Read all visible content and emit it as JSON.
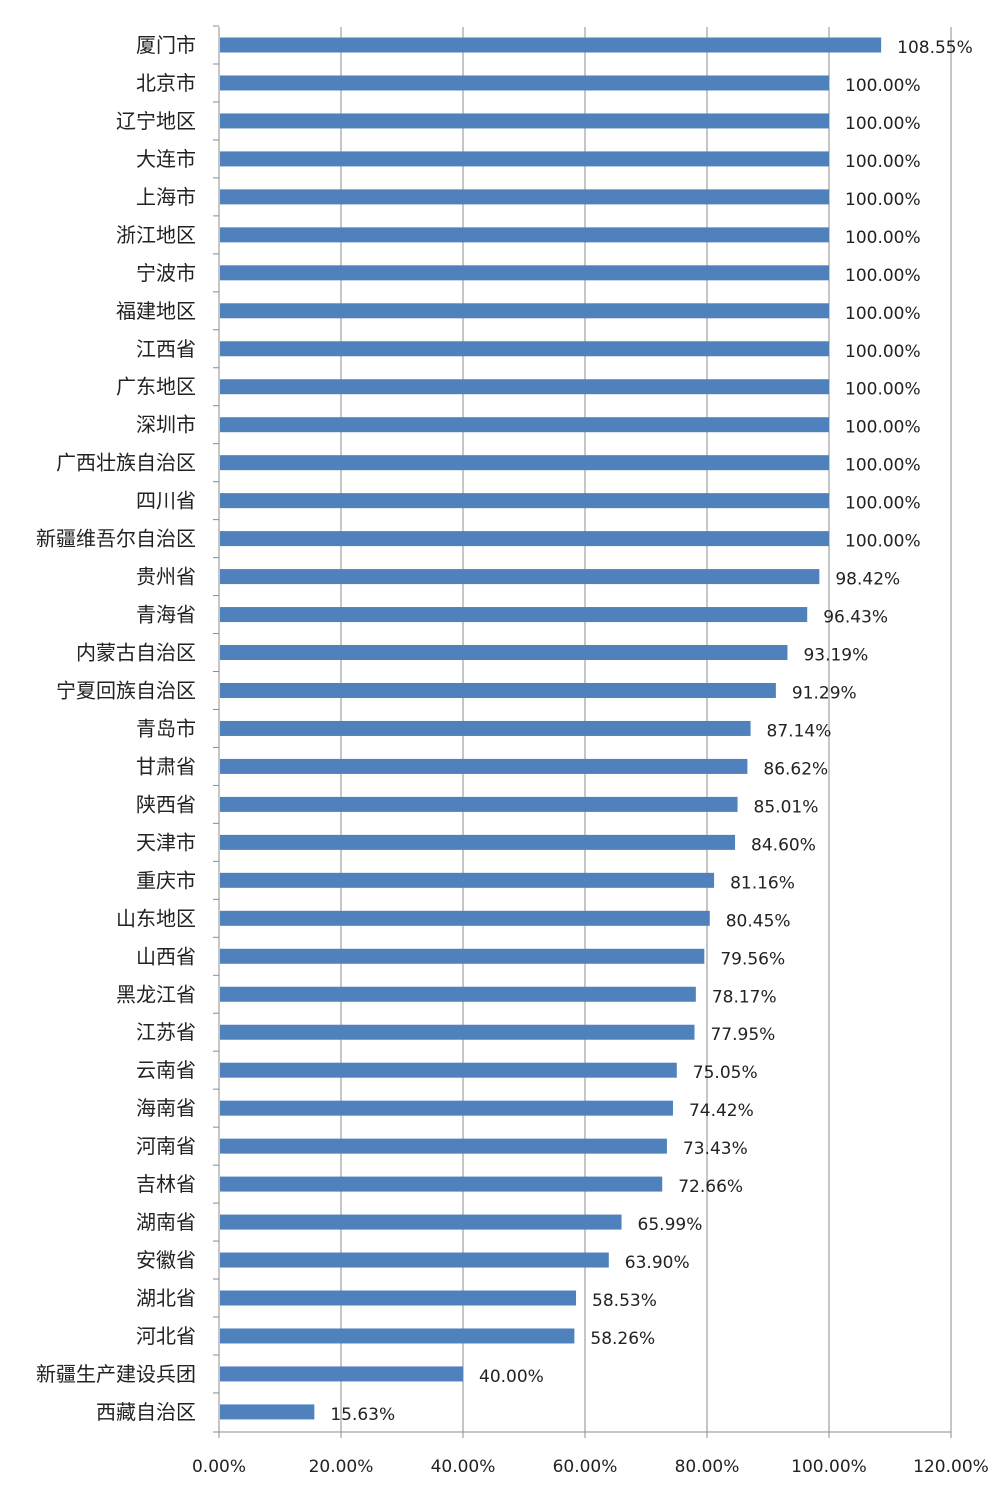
{
  "chart_data": {
    "type": "bar",
    "orientation": "horizontal",
    "title": "",
    "xlabel": "",
    "ylabel": "",
    "xlim": [
      0,
      120
    ],
    "x_ticks": [
      "0.00%",
      "20.00%",
      "40.00%",
      "60.00%",
      "80.00%",
      "100.00%",
      "120.00%"
    ],
    "grid": "vertical",
    "legend": "none",
    "bar_color": "#4F81BD",
    "categories": [
      "厦门市",
      "北京市",
      "辽宁地区",
      "大连市",
      "上海市",
      "浙江地区",
      "宁波市",
      "福建地区",
      "江西省",
      "广东地区",
      "深圳市",
      "广西壮族自治区",
      "四川省",
      "新疆维吾尔自治区",
      "贵州省",
      "青海省",
      "内蒙古自治区",
      "宁夏回族自治区",
      "青岛市",
      "甘肃省",
      "陕西省",
      "天津市",
      "重庆市",
      "山东地区",
      "山西省",
      "黑龙江省",
      "江苏省",
      "云南省",
      "海南省",
      "河南省",
      "吉林省",
      "湖南省",
      "安徽省",
      "湖北省",
      "河北省",
      "新疆生产建设兵团",
      "西藏自治区"
    ],
    "values": [
      108.55,
      100.0,
      100.0,
      100.0,
      100.0,
      100.0,
      100.0,
      100.0,
      100.0,
      100.0,
      100.0,
      100.0,
      100.0,
      100.0,
      98.42,
      96.43,
      93.19,
      91.29,
      87.14,
      86.62,
      85.01,
      84.6,
      81.16,
      80.45,
      79.56,
      78.17,
      77.95,
      75.05,
      74.42,
      73.43,
      72.66,
      65.99,
      63.9,
      58.53,
      58.26,
      40.0,
      15.63
    ],
    "value_labels": [
      "108.55%",
      "100.00%",
      "100.00%",
      "100.00%",
      "100.00%",
      "100.00%",
      "100.00%",
      "100.00%",
      "100.00%",
      "100.00%",
      "100.00%",
      "100.00%",
      "100.00%",
      "100.00%",
      "98.42%",
      "96.43%",
      "93.19%",
      "91.29%",
      "87.14%",
      "86.62%",
      "85.01%",
      "84.60%",
      "81.16%",
      "80.45%",
      "79.56%",
      "78.17%",
      "77.95%",
      "75.05%",
      "74.42%",
      "73.43%",
      "72.66%",
      "65.99%",
      "63.90%",
      "58.53%",
      "58.26%",
      "40.00%",
      "15.63%"
    ]
  }
}
